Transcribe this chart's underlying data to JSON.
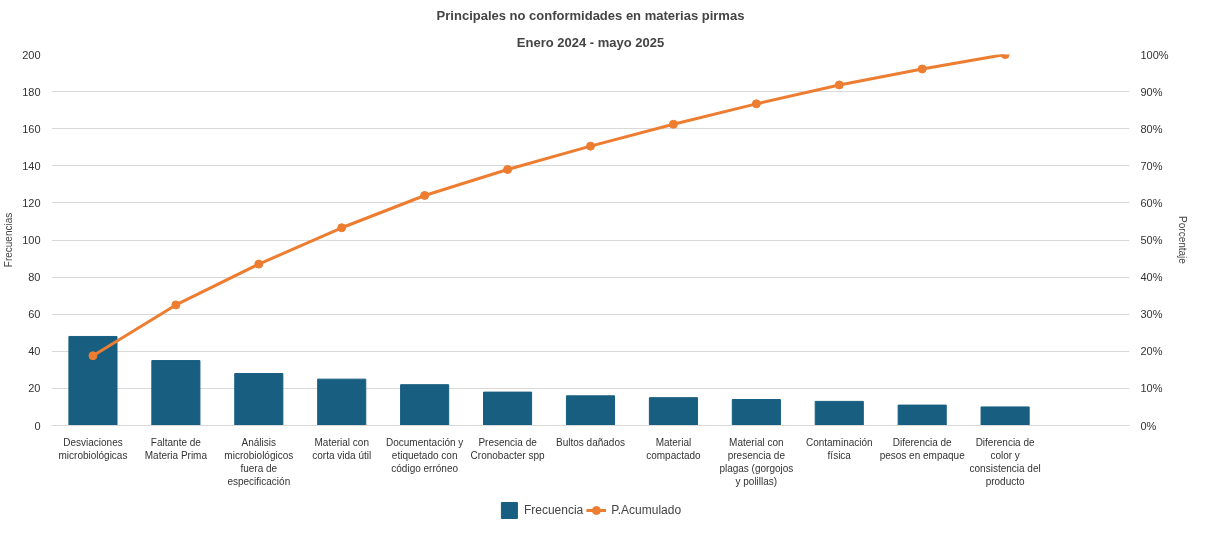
{
  "chart_data": {
    "type": "bar",
    "title": "Principales no conformidades en materias pirmas",
    "subtitle": "Enero 2024 - mayo 2025",
    "xlabel": null,
    "ylabel": "Frecuencias",
    "y2label": "Porcentaje",
    "categories": [
      "Desviaciones microbiológicas",
      "Faltante de Materia Prima",
      "Análisis microbiológicos fuera de especificación",
      "Material con corta vida útil",
      "Documentación y etiquetado con código erróneo",
      "Presencia de Cronobacter spp",
      "Bultos dañados",
      "Material compactado",
      "Material con presencia de plagas (gorgojos y polillas)",
      "Contaminación física",
      "Diferencia de pesos en empaque",
      "Diferencia de color y consistencia del producto"
    ],
    "series": [
      {
        "name": "Frecuencia",
        "type": "bar",
        "color": "#175e81",
        "values": [
          48,
          35,
          28,
          25,
          22,
          18,
          16,
          15,
          14,
          13,
          11,
          10
        ]
      },
      {
        "name": "P.Acumulado",
        "type": "line",
        "axis": "y2",
        "color": "#ed7d31",
        "values": [
          18.8,
          32.5,
          43.5,
          53.3,
          62.0,
          69.0,
          75.3,
          81.2,
          86.7,
          91.8,
          96.1,
          100
        ]
      }
    ],
    "ylim": [
      0,
      200
    ],
    "yticks": [
      0,
      20,
      40,
      60,
      80,
      100,
      120,
      140,
      160,
      180,
      200
    ],
    "y2lim": [
      0,
      100
    ],
    "y2ticks": [
      {
        "value": 0,
        "label": "0%"
      },
      {
        "value": 10,
        "label": "10%"
      },
      {
        "value": 20,
        "label": "20%"
      },
      {
        "value": 30,
        "label": "30%"
      },
      {
        "value": 40,
        "label": "40%"
      },
      {
        "value": 50,
        "label": "50%"
      },
      {
        "value": 60,
        "label": "60%"
      },
      {
        "value": 70,
        "label": "70%"
      },
      {
        "value": 80,
        "label": "80%"
      },
      {
        "value": 90,
        "label": "90%"
      },
      {
        "value": 100,
        "label": "100%"
      }
    ],
    "grid": "y",
    "legend": "bottom",
    "marker": "circle",
    "line_style": "solid"
  }
}
